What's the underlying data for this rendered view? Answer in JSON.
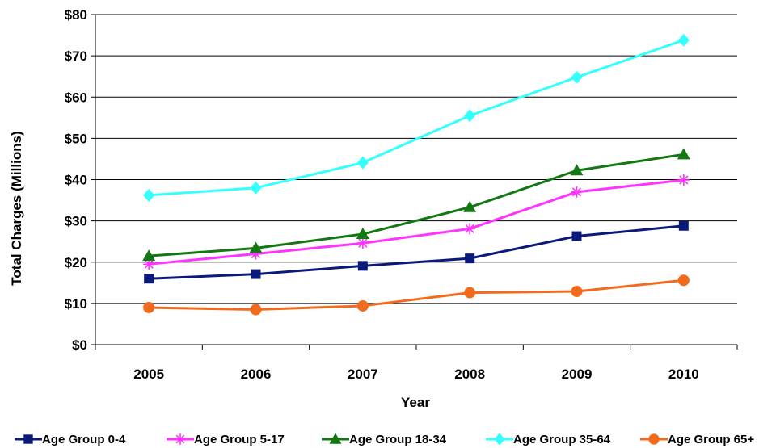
{
  "chart_data": {
    "type": "line",
    "x": [
      "2005",
      "2006",
      "2007",
      "2008",
      "2009",
      "2010"
    ],
    "xlabel": "Year",
    "ylabel": "Total Charges (Millions)",
    "ylim": [
      0,
      80
    ],
    "yticks": [
      0,
      10,
      20,
      30,
      40,
      50,
      60,
      70,
      80
    ],
    "ytick_labels": [
      "$0",
      "$10",
      "$20",
      "$30",
      "$40",
      "$50",
      "$60",
      "$70",
      "$80"
    ],
    "grid": "horizontal",
    "legend_position": "bottom",
    "series": [
      {
        "name": "Age Group 0-4",
        "color": "#0a1a7a",
        "marker": "square",
        "values": [
          16.0,
          17.1,
          19.1,
          20.9,
          26.3,
          28.8
        ]
      },
      {
        "name": "Age Group 5-17",
        "color": "#ff33ff",
        "marker": "asterisk",
        "values": [
          19.5,
          22.0,
          24.6,
          28.1,
          37.0,
          39.9
        ]
      },
      {
        "name": "Age Group 18-34",
        "color": "#127812",
        "marker": "triangle",
        "values": [
          21.5,
          23.4,
          26.8,
          33.3,
          42.2,
          46.1
        ]
      },
      {
        "name": "Age Group 35-64",
        "color": "#33ffff",
        "marker": "diamond",
        "values": [
          36.2,
          38.0,
          44.1,
          55.5,
          64.8,
          73.8
        ]
      },
      {
        "name": "Age Group 65+",
        "color": "#f26b1d",
        "marker": "circle",
        "values": [
          9.0,
          8.5,
          9.4,
          12.6,
          12.9,
          15.6
        ]
      }
    ]
  }
}
